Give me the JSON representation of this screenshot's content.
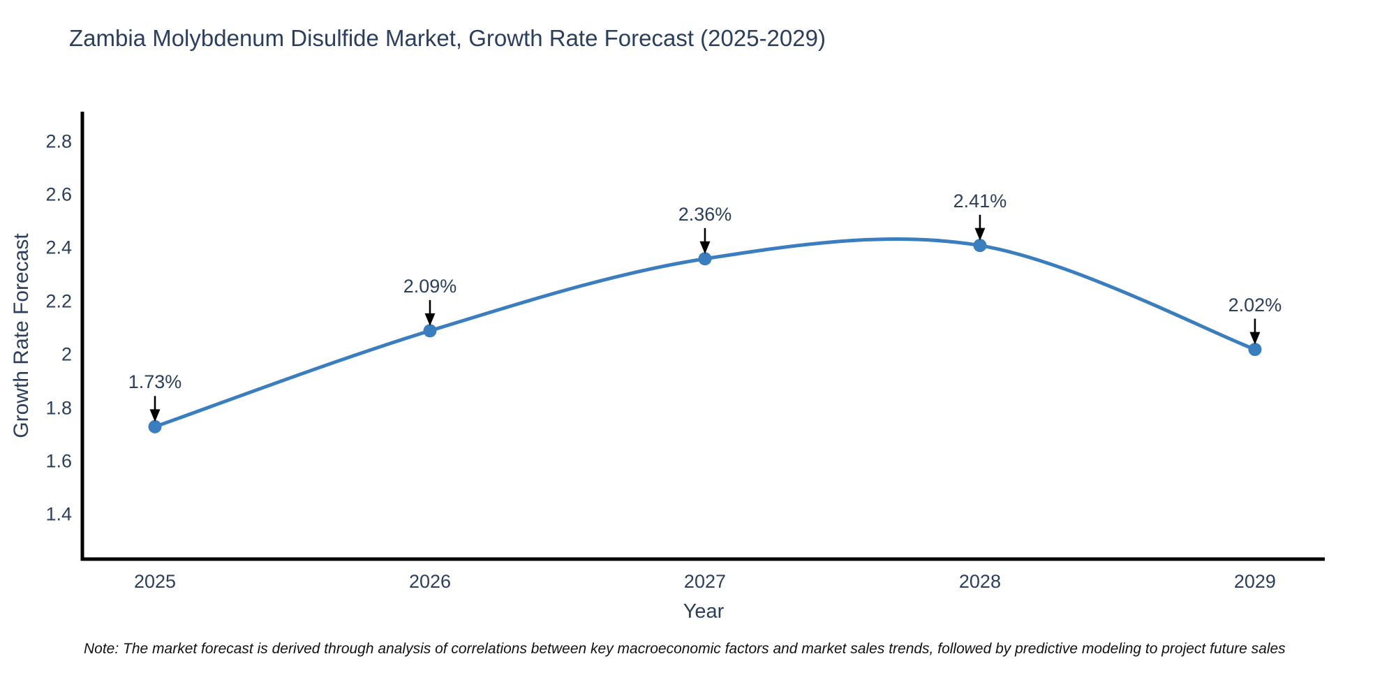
{
  "title": "Zambia Molybdenum Disulfide Market, Growth Rate Forecast (2025-2029)",
  "note": "Note: The market forecast is derived through analysis of correlations between key macroeconomic factors and market sales trends, followed by predictive modeling to project future sales",
  "chart_data": {
    "type": "line",
    "line_shape": "spline",
    "title": "Zambia Molybdenum Disulfide Market, Growth Rate Forecast (2025-2029)",
    "xlabel": "Year",
    "ylabel": "Growth Rate Forecast",
    "x": [
      2025,
      2026,
      2027,
      2028,
      2029
    ],
    "values": [
      1.73,
      2.09,
      2.36,
      2.41,
      2.02
    ],
    "labels": [
      "1.73%",
      "2.09%",
      "2.36%",
      "2.41%",
      "2.02%"
    ],
    "unit": "%",
    "x_tick_values": [
      2025,
      2026,
      2027,
      2028,
      2029
    ],
    "x_tick_labels": [
      "2025",
      "2026",
      "2027",
      "2028",
      "2029"
    ],
    "y_tick_values": [
      1.4,
      1.6,
      1.8,
      2,
      2.2,
      2.4,
      2.6,
      2.8
    ],
    "y_tick_labels": [
      "1.4",
      "1.6",
      "1.8",
      "2",
      "2.2",
      "2.4",
      "2.6",
      "2.8"
    ],
    "xlim": [
      2024.736,
      2029.254
    ],
    "ylim": [
      1.228,
      2.912
    ],
    "grid": false,
    "legend": false,
    "annotations_have_arrows": true,
    "colors": {
      "line": "#3a7ebf",
      "marker": "#3a7ebf",
      "arrow": "#000000",
      "axis": "#000000",
      "text": "#2a3f5f",
      "note_text": "#111111",
      "background": "#ffffff"
    }
  }
}
